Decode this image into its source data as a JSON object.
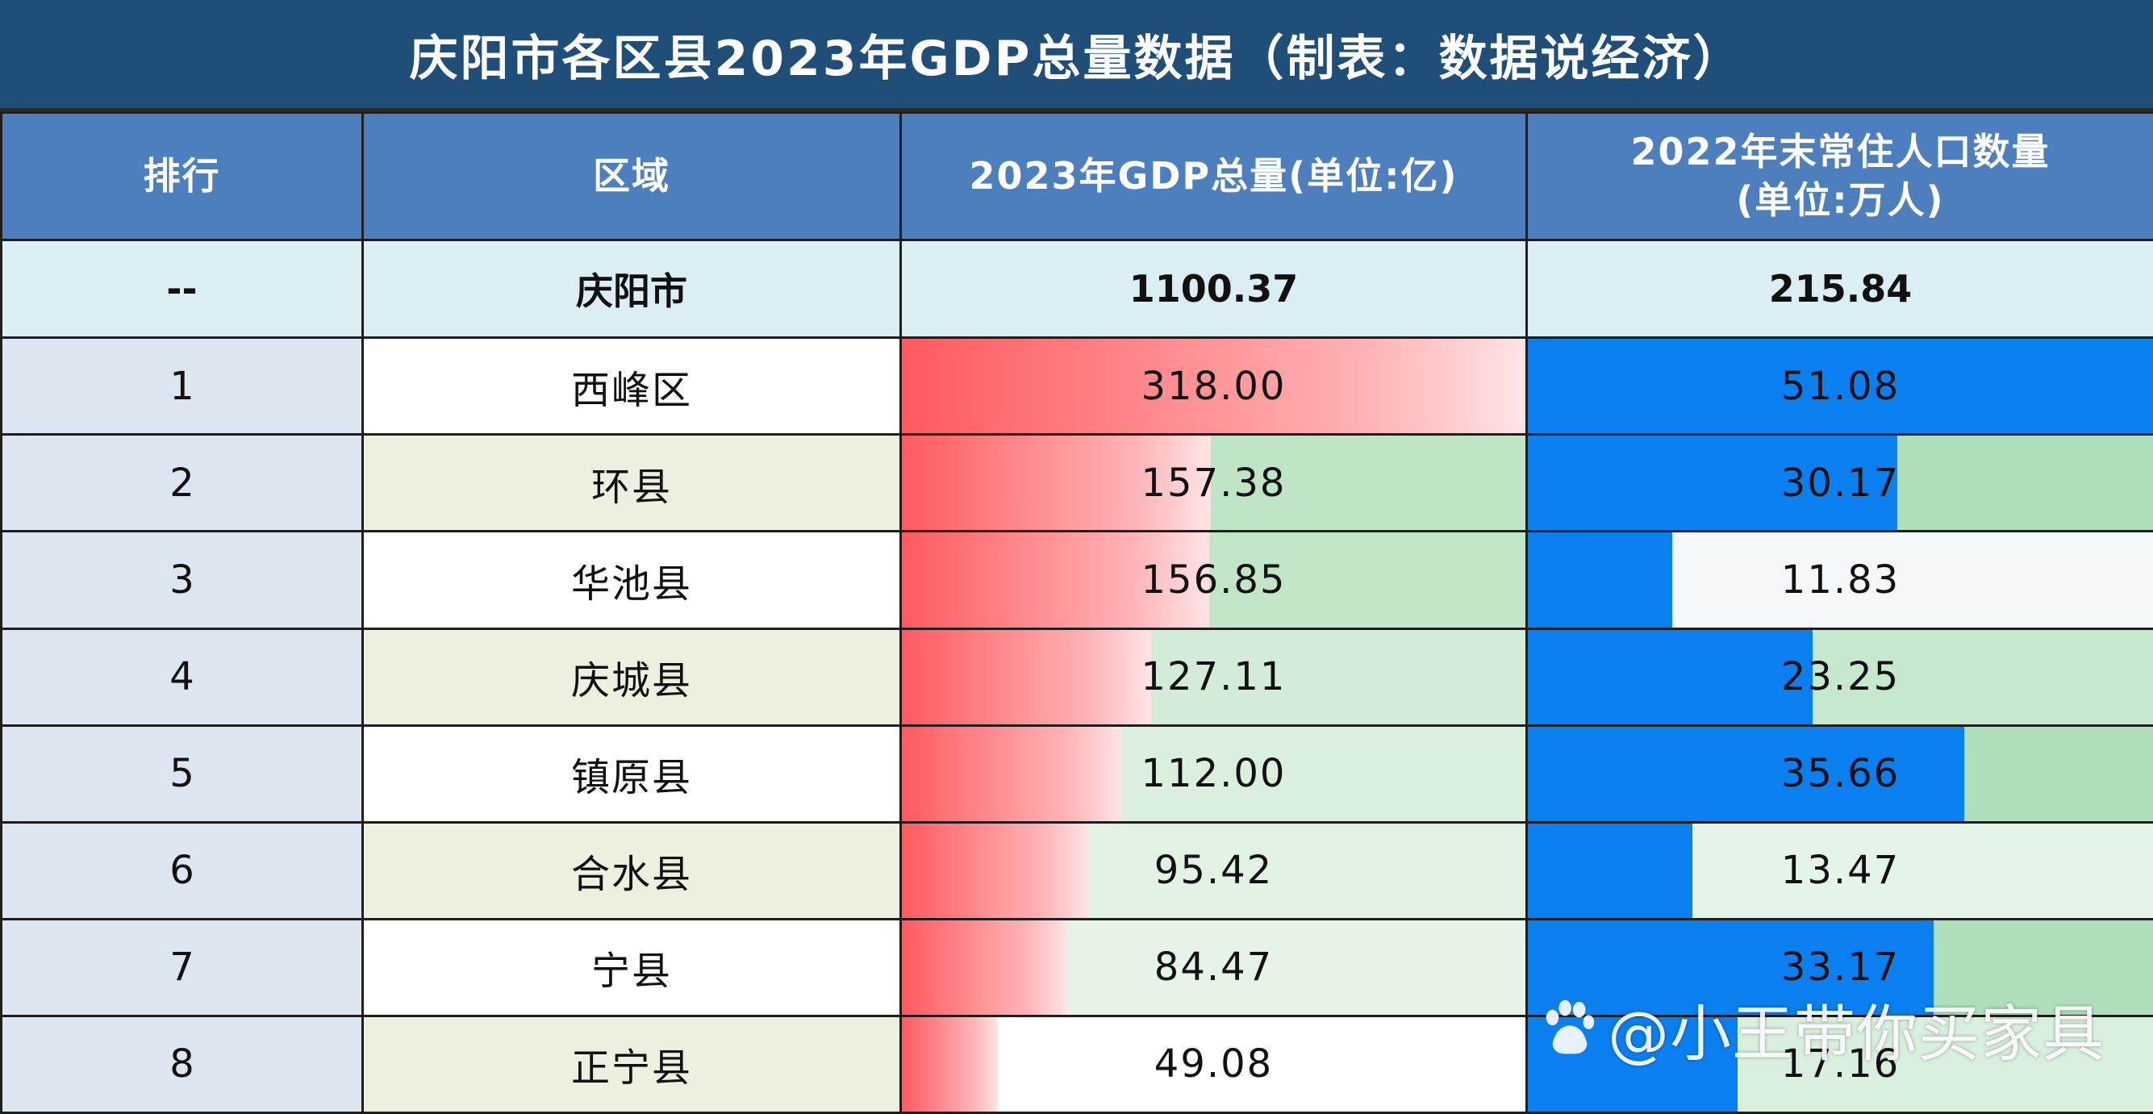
{
  "title": "庆阳市各区县2023年GDP总量数据（制表：数据说经济）",
  "headers": {
    "rank": "排行",
    "region": "区域",
    "gdp": "2023年GDP总量(单位:亿)",
    "pop_line1": "2022年末常住人口数量",
    "pop_line2": "(单位:万人)"
  },
  "total": {
    "rank": "--",
    "region": "庆阳市",
    "gdp": "1100.37",
    "population": "215.84"
  },
  "colors": {
    "gdp_bar": "#ff5a5f",
    "pop_bar": "#0a7ff0",
    "header_bg": "#4d7fbe",
    "title_bg": "#1f4e79"
  },
  "watermark": "@小王带你买家具",
  "chart_data": {
    "type": "table",
    "title": "庆阳市各区县2023年GDP总量数据（制表：数据说经济）",
    "columns": [
      "排行",
      "区域",
      "2023年GDP总量(单位:亿)",
      "2022年末常住人口数量(单位:万人)"
    ],
    "rows": [
      {
        "rank": "1",
        "region": "西峰区",
        "gdp": "318.00",
        "population": "51.08",
        "gdp_cell_green_fill": 0.0,
        "pop_cell_green_fill": 0.0
      },
      {
        "rank": "2",
        "region": "环县",
        "gdp": "157.38",
        "population": "30.17",
        "gdp_cell_green_fill": 1.0,
        "pop_cell_green_fill": 1.0
      },
      {
        "rank": "3",
        "region": "华池县",
        "gdp": "156.85",
        "population": "11.83",
        "gdp_cell_green_fill": 0.95,
        "pop_cell_green_fill": 0.0
      },
      {
        "rank": "4",
        "region": "庆城县",
        "gdp": "127.11",
        "population": "23.25",
        "gdp_cell_green_fill": 0.6,
        "pop_cell_green_fill": 0.6
      },
      {
        "rank": "5",
        "region": "镇原县",
        "gdp": "112.00",
        "population": "35.66",
        "gdp_cell_green_fill": 0.45,
        "pop_cell_green_fill": 1.2
      },
      {
        "rank": "6",
        "region": "合水县",
        "gdp": "95.42",
        "population": "13.47",
        "gdp_cell_green_fill": 0.3,
        "pop_cell_green_fill": 0.1
      },
      {
        "rank": "7",
        "region": "宁县",
        "gdp": "84.47",
        "population": "33.17",
        "gdp_cell_green_fill": 0.2,
        "pop_cell_green_fill": 1.1
      },
      {
        "rank": "8",
        "region": "正宁县",
        "gdp": "49.08",
        "population": "17.16",
        "gdp_cell_green_fill": 0.0,
        "pop_cell_green_fill": 0.3
      }
    ],
    "gdp_bar_max": 318.0,
    "pop_bar_max": 51.08
  }
}
